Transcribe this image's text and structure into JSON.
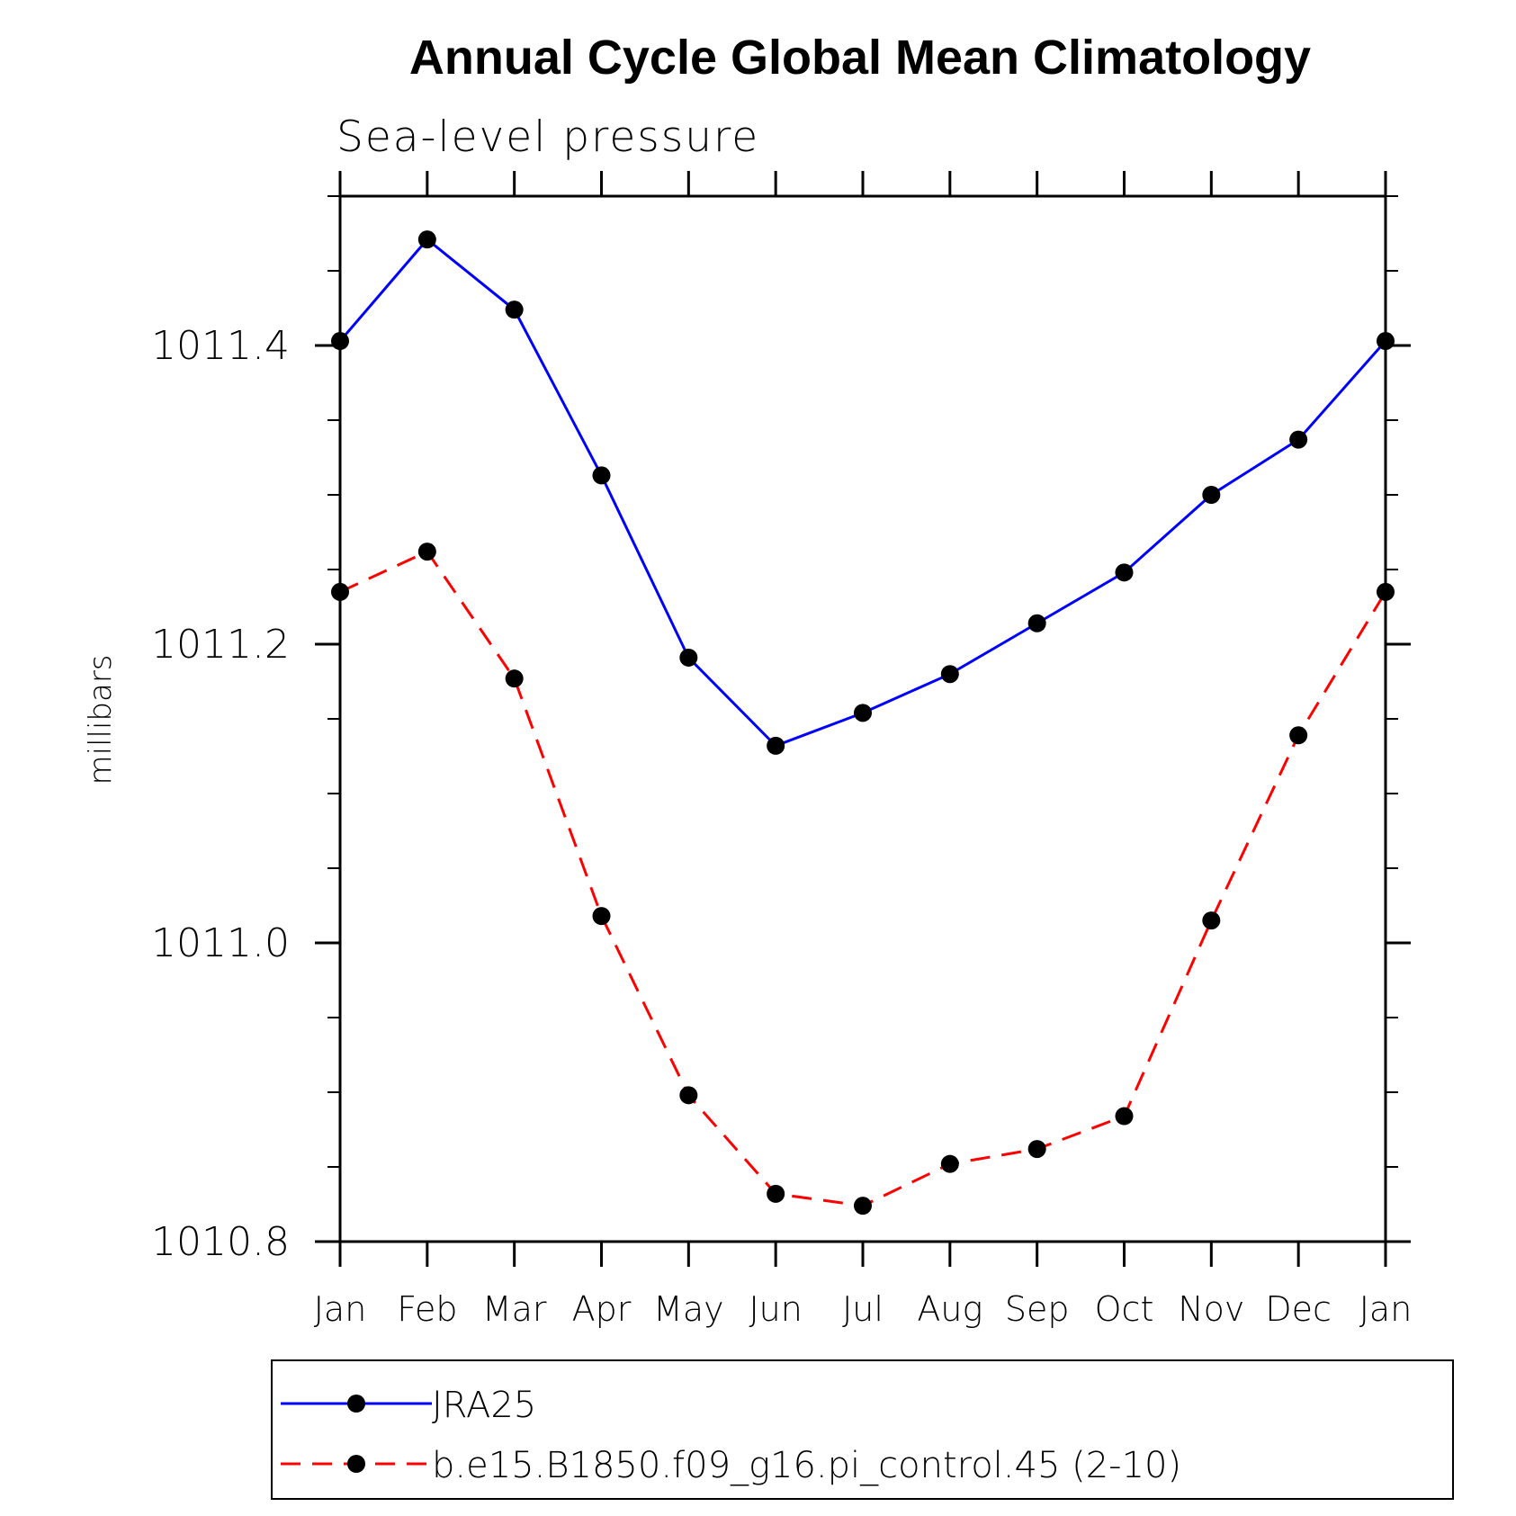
{
  "chart_data": {
    "type": "line",
    "title": "Annual Cycle Global Mean Climatology",
    "subtitle": "Sea-level pressure",
    "ylabel": "millibars",
    "xlabel": "",
    "categories": [
      "Jan",
      "Feb",
      "Mar",
      "Apr",
      "May",
      "Jun",
      "Jul",
      "Aug",
      "Sep",
      "Oct",
      "Nov",
      "Dec",
      "Jan"
    ],
    "ylim": [
      1010.8,
      1011.5
    ],
    "yticks": [
      1010.8,
      1011.0,
      1011.2,
      1011.4
    ],
    "ytick_labels": [
      "1010.8",
      "1011.0",
      "1011.2",
      "1011.4"
    ],
    "yminor_step": 0.05,
    "grid": false,
    "legend_placement": "bottom",
    "series": [
      {
        "name": "JRA25",
        "color": "#0000ff",
        "line_style": "solid",
        "marker": "filled-circle",
        "values": [
          1011.403,
          1011.471,
          1011.424,
          1011.313,
          1011.191,
          1011.132,
          1011.154,
          1011.18,
          1011.214,
          1011.248,
          1011.3,
          1011.337,
          1011.403
        ]
      },
      {
        "name": "b.e15.B1850.f09_g16.pi_control.45 (2-10)",
        "color": "#ff0000",
        "line_style": "dashed",
        "marker": "filled-circle",
        "values": [
          1011.235,
          1011.262,
          1011.177,
          1011.018,
          1010.898,
          1010.832,
          1010.824,
          1010.852,
          1010.862,
          1010.884,
          1011.015,
          1011.139,
          1011.235
        ]
      }
    ]
  }
}
